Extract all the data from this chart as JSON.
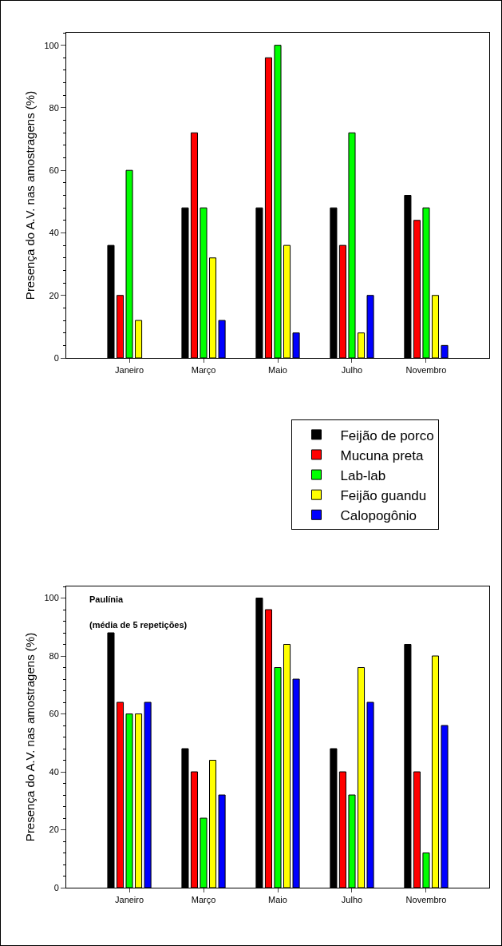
{
  "chart_data": [
    {
      "type": "bar",
      "ylabel": "Presença do A.V. nas amostragens (%)",
      "categories": [
        "Janeiro",
        "Março",
        "Maio",
        "Julho",
        "Novembro"
      ],
      "ylim": [
        0,
        104
      ],
      "yticks": [
        0,
        20,
        40,
        60,
        80,
        100
      ],
      "legend": "bottom right",
      "series": [
        {
          "name": "Feijão de porco",
          "color": "#000000",
          "values": [
            36,
            48,
            48,
            48,
            52
          ]
        },
        {
          "name": "Mucuna preta",
          "color": "#ff0000",
          "values": [
            20,
            72,
            96,
            36,
            44
          ]
        },
        {
          "name": "Lab-lab",
          "color": "#00ff00",
          "values": [
            60,
            48,
            100,
            72,
            48
          ]
        },
        {
          "name": "Feijão guandu",
          "color": "#ffff00",
          "values": [
            12,
            32,
            36,
            8,
            20
          ]
        },
        {
          "name": "Calopogônio",
          "color": "#0000ff",
          "values": [
            null,
            12,
            8,
            20,
            4
          ]
        }
      ]
    },
    {
      "type": "bar",
      "ylabel": "Presença do A.V. nas amostragens (%)",
      "categories": [
        "Janeiro",
        "Março",
        "Maio",
        "Julho",
        "Novembro"
      ],
      "ylim": [
        0,
        104
      ],
      "yticks": [
        0,
        20,
        40,
        60,
        80,
        100
      ],
      "annotations": [
        "Paulínia",
        "(média de 5 repetições)"
      ],
      "series": [
        {
          "color": "#000000",
          "values": [
            88,
            48,
            100,
            48,
            84
          ]
        },
        {
          "color": "#ff0000",
          "values": [
            64,
            40,
            96,
            40,
            40
          ]
        },
        {
          "color": "#00ff00",
          "values": [
            60,
            24,
            76,
            32,
            12
          ]
        },
        {
          "color": "#ffff00",
          "values": [
            60,
            44,
            84,
            76,
            80
          ]
        },
        {
          "color": "#0000ff",
          "values": [
            64,
            32,
            72,
            64,
            56
          ]
        }
      ]
    }
  ]
}
